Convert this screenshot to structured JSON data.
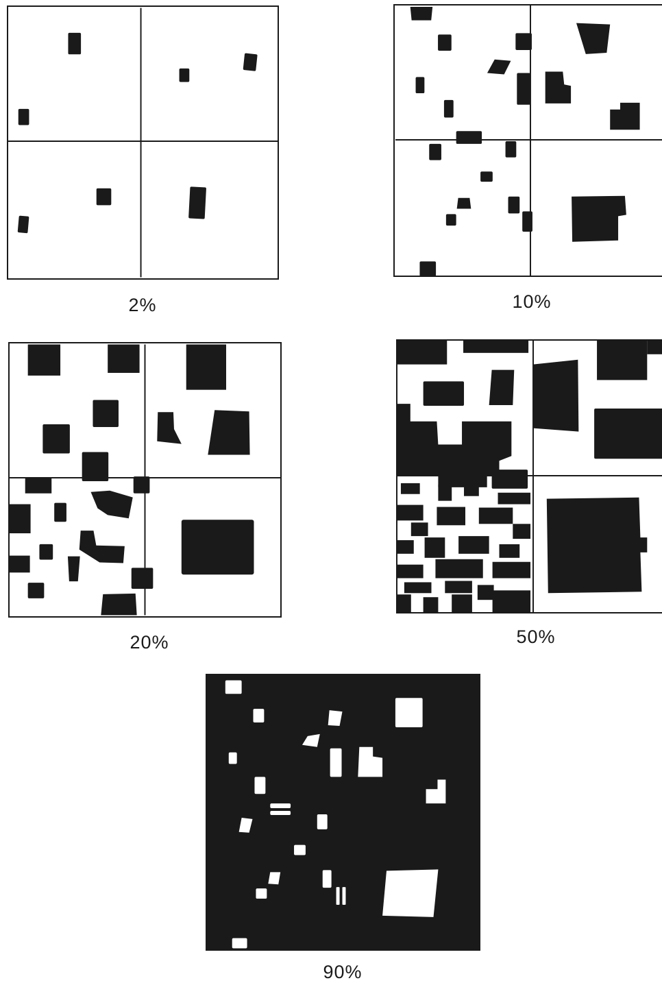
{
  "panels": [
    {
      "id": "p1",
      "label": "2%",
      "inverted": false
    },
    {
      "id": "p2",
      "label": "10%",
      "inverted": false
    },
    {
      "id": "p3",
      "label": "20%",
      "inverted": false
    },
    {
      "id": "p4",
      "label": "50%",
      "inverted": false
    },
    {
      "id": "p5",
      "label": "90%",
      "inverted": true
    }
  ],
  "colors": {
    "ink": "#1a1a1a",
    "paper": "#ffffff"
  }
}
